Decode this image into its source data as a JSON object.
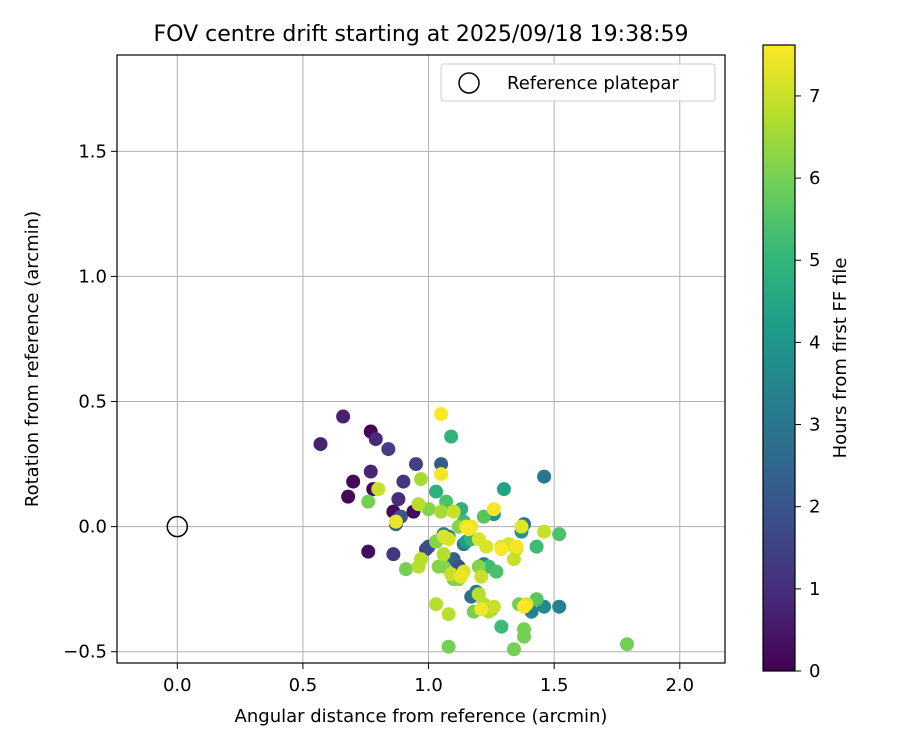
{
  "chart_data": {
    "type": "scatter",
    "title": "FOV centre drift starting at 2025/09/18 19:38:59",
    "xlabel": "Angular distance from reference (arcmin)",
    "ylabel": "Rotation from reference (arcmin)",
    "xlim": [
      -0.24,
      2.18
    ],
    "ylim": [
      -0.545,
      1.885
    ],
    "xticks": [
      "0.0",
      "0.5",
      "1.0",
      "1.5",
      "2.0"
    ],
    "yticks": [
      "−0.5",
      "0.0",
      "0.5",
      "1.0",
      "1.5"
    ],
    "grid": true,
    "legend": {
      "position": "top-right",
      "entries": [
        "Reference platepar"
      ]
    },
    "reference_point": {
      "x": 0.0,
      "y": 0.0
    },
    "colorbar": {
      "label": "Hours from first FF file",
      "range": [
        0,
        7.62
      ],
      "ticks": [
        "0",
        "1",
        "2",
        "3",
        "4",
        "5",
        "6",
        "7"
      ],
      "colormap": [
        "#440154",
        "#482878",
        "#3e4989",
        "#31688e",
        "#26828e",
        "#1f9e89",
        "#35b779",
        "#6ece58",
        "#b5de2b",
        "#fde725"
      ]
    },
    "points": [
      {
        "x": 0.77,
        "y": 0.38,
        "h": 0.05
      },
      {
        "x": 0.7,
        "y": 0.18,
        "h": 0.1
      },
      {
        "x": 0.68,
        "y": 0.12,
        "h": 0.12
      },
      {
        "x": 0.76,
        "y": -0.1,
        "h": 0.25
      },
      {
        "x": 0.78,
        "y": 0.15,
        "h": 0.1
      },
      {
        "x": 0.86,
        "y": 0.06,
        "h": 0.2
      },
      {
        "x": 0.66,
        "y": 0.44,
        "h": 0.7
      },
      {
        "x": 0.57,
        "y": 0.33,
        "h": 0.7
      },
      {
        "x": 0.79,
        "y": 0.35,
        "h": 0.9
      },
      {
        "x": 0.77,
        "y": 0.22,
        "h": 0.8
      },
      {
        "x": 0.84,
        "y": 0.31,
        "h": 1.4
      },
      {
        "x": 0.9,
        "y": 0.18,
        "h": 1.2
      },
      {
        "x": 0.95,
        "y": 0.25,
        "h": 1.5
      },
      {
        "x": 0.88,
        "y": 0.11,
        "h": 1.0
      },
      {
        "x": 0.86,
        "y": -0.11,
        "h": 1.2
      },
      {
        "x": 0.87,
        "y": 0.01,
        "h": 2.2
      },
      {
        "x": 0.89,
        "y": 0.04,
        "h": 2.0
      },
      {
        "x": 0.94,
        "y": 0.06,
        "h": 0.2
      },
      {
        "x": 0.99,
        "y": -0.09,
        "h": 1.6
      },
      {
        "x": 1.0,
        "y": -0.08,
        "h": 1.8
      },
      {
        "x": 1.03,
        "y": -0.06,
        "h": 1.9
      },
      {
        "x": 1.05,
        "y": 0.25,
        "h": 2.2
      },
      {
        "x": 1.1,
        "y": -0.13,
        "h": 2.4
      },
      {
        "x": 1.12,
        "y": -0.16,
        "h": 2.0
      },
      {
        "x": 1.08,
        "y": -0.04,
        "h": 2.8
      },
      {
        "x": 1.14,
        "y": -0.07,
        "h": 3.0
      },
      {
        "x": 1.17,
        "y": -0.28,
        "h": 2.8
      },
      {
        "x": 1.19,
        "y": -0.26,
        "h": 3.2
      },
      {
        "x": 1.25,
        "y": -0.33,
        "h": 2.9
      },
      {
        "x": 1.06,
        "y": -0.03,
        "h": 3.2
      },
      {
        "x": 1.22,
        "y": -0.15,
        "h": 3.2
      },
      {
        "x": 1.46,
        "y": 0.2,
        "h": 3.0
      },
      {
        "x": 1.41,
        "y": -0.34,
        "h": 3.4
      },
      {
        "x": 1.52,
        "y": -0.32,
        "h": 3.4
      },
      {
        "x": 1.46,
        "y": -0.32,
        "h": 3.6
      },
      {
        "x": 1.38,
        "y": 0.01,
        "h": 3.2
      },
      {
        "x": 1.26,
        "y": 0.05,
        "h": 4.0
      },
      {
        "x": 1.15,
        "y": -0.06,
        "h": 4.2
      },
      {
        "x": 1.3,
        "y": 0.15,
        "h": 4.4
      },
      {
        "x": 1.37,
        "y": -0.02,
        "h": 4.0
      },
      {
        "x": 1.03,
        "y": 0.14,
        "h": 4.8
      },
      {
        "x": 1.09,
        "y": 0.36,
        "h": 4.9
      },
      {
        "x": 1.13,
        "y": 0.07,
        "h": 4.8
      },
      {
        "x": 1.07,
        "y": 0.1,
        "h": 5.4
      },
      {
        "x": 1.14,
        "y": 0.02,
        "h": 5.2
      },
      {
        "x": 1.17,
        "y": -0.05,
        "h": 5.0
      },
      {
        "x": 1.22,
        "y": 0.04,
        "h": 5.6
      },
      {
        "x": 1.24,
        "y": -0.16,
        "h": 5.2
      },
      {
        "x": 1.27,
        "y": -0.18,
        "h": 5.4
      },
      {
        "x": 1.29,
        "y": -0.4,
        "h": 5.2
      },
      {
        "x": 1.43,
        "y": -0.08,
        "h": 5.2
      },
      {
        "x": 1.43,
        "y": -0.29,
        "h": 5.6
      },
      {
        "x": 1.52,
        "y": -0.03,
        "h": 5.4
      },
      {
        "x": 1.36,
        "y": -0.31,
        "h": 6.0
      },
      {
        "x": 1.18,
        "y": -0.34,
        "h": 6.0
      },
      {
        "x": 1.08,
        "y": -0.48,
        "h": 6.0
      },
      {
        "x": 1.34,
        "y": -0.49,
        "h": 6.0
      },
      {
        "x": 1.38,
        "y": -0.44,
        "h": 6.0
      },
      {
        "x": 1.38,
        "y": -0.41,
        "h": 6.0
      },
      {
        "x": 1.79,
        "y": -0.47,
        "h": 6.0
      },
      {
        "x": 0.76,
        "y": 0.1,
        "h": 6.0
      },
      {
        "x": 0.91,
        "y": -0.17,
        "h": 6.0
      },
      {
        "x": 1.04,
        "y": -0.16,
        "h": 6.2
      },
      {
        "x": 1.06,
        "y": -0.16,
        "h": 6.2
      },
      {
        "x": 1.1,
        "y": -0.21,
        "h": 6.2
      },
      {
        "x": 1.12,
        "y": -0.21,
        "h": 6.2
      },
      {
        "x": 1.2,
        "y": -0.16,
        "h": 6.2
      },
      {
        "x": 1.12,
        "y": 0.0,
        "h": 6.2
      },
      {
        "x": 1.03,
        "y": -0.06,
        "h": 6.2
      },
      {
        "x": 1.0,
        "y": 0.07,
        "h": 6.2
      },
      {
        "x": 1.05,
        "y": 0.06,
        "h": 6.6
      },
      {
        "x": 0.97,
        "y": 0.19,
        "h": 6.6
      },
      {
        "x": 0.96,
        "y": 0.09,
        "h": 6.8
      },
      {
        "x": 0.96,
        "y": -0.16,
        "h": 6.8
      },
      {
        "x": 0.97,
        "y": -0.13,
        "h": 6.8
      },
      {
        "x": 1.06,
        "y": -0.11,
        "h": 6.8
      },
      {
        "x": 1.08,
        "y": -0.35,
        "h": 6.8
      },
      {
        "x": 1.03,
        "y": -0.31,
        "h": 6.8
      },
      {
        "x": 1.2,
        "y": -0.27,
        "h": 6.8
      },
      {
        "x": 1.22,
        "y": -0.31,
        "h": 6.8
      },
      {
        "x": 1.24,
        "y": -0.34,
        "h": 6.8
      },
      {
        "x": 1.26,
        "y": -0.32,
        "h": 7.0
      },
      {
        "x": 1.21,
        "y": -0.2,
        "h": 7.0
      },
      {
        "x": 1.09,
        "y": -0.19,
        "h": 7.0
      },
      {
        "x": 1.1,
        "y": 0.06,
        "h": 7.0
      },
      {
        "x": 1.14,
        "y": -0.18,
        "h": 7.2
      },
      {
        "x": 1.08,
        "y": -0.05,
        "h": 7.2
      },
      {
        "x": 1.06,
        "y": -0.04,
        "h": 7.2
      },
      {
        "x": 1.2,
        "y": -0.05,
        "h": 7.2
      },
      {
        "x": 1.23,
        "y": -0.08,
        "h": 7.2
      },
      {
        "x": 1.29,
        "y": -0.08,
        "h": 7.2
      },
      {
        "x": 1.32,
        "y": -0.07,
        "h": 7.2
      },
      {
        "x": 1.35,
        "y": -0.09,
        "h": 7.2
      },
      {
        "x": 1.34,
        "y": -0.13,
        "h": 7.0
      },
      {
        "x": 1.37,
        "y": 0.0,
        "h": 7.3
      },
      {
        "x": 1.39,
        "y": -0.31,
        "h": 7.3
      },
      {
        "x": 1.46,
        "y": -0.02,
        "h": 7.0
      },
      {
        "x": 1.15,
        "y": 0.0,
        "h": 7.4
      },
      {
        "x": 1.17,
        "y": 0.0,
        "h": 7.4
      },
      {
        "x": 1.26,
        "y": 0.07,
        "h": 7.5
      },
      {
        "x": 1.05,
        "y": 0.21,
        "h": 7.5
      },
      {
        "x": 1.05,
        "y": 0.45,
        "h": 7.6
      },
      {
        "x": 0.8,
        "y": 0.15,
        "h": 7.0
      },
      {
        "x": 0.87,
        "y": 0.02,
        "h": 7.4
      },
      {
        "x": 1.21,
        "y": -0.33,
        "h": 7.5
      },
      {
        "x": 1.35,
        "y": -0.08,
        "h": 7.5
      },
      {
        "x": 1.16,
        "y": -0.01,
        "h": 7.6
      },
      {
        "x": 1.29,
        "y": -0.09,
        "h": 7.6
      },
      {
        "x": 1.38,
        "y": -0.32,
        "h": 7.6
      },
      {
        "x": 1.13,
        "y": -0.2,
        "h": 7.4
      }
    ]
  }
}
